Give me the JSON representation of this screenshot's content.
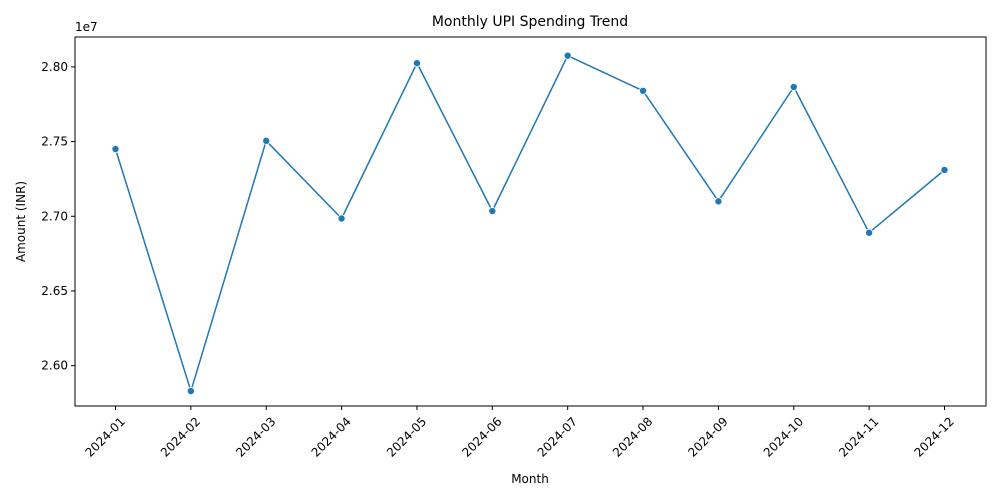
{
  "chart_data": {
    "type": "line",
    "title": "Monthly UPI Spending Trend",
    "xlabel": "Month",
    "ylabel": "Amount (INR)",
    "y_offset_label": "1e7",
    "categories": [
      "2024-01",
      "2024-02",
      "2024-03",
      "2024-04",
      "2024-05",
      "2024-06",
      "2024-07",
      "2024-08",
      "2024-09",
      "2024-10",
      "2024-11",
      "2024-12"
    ],
    "series": [
      {
        "values": [
          27450000,
          25830000,
          27505000,
          26985000,
          28025000,
          27035000,
          28075000,
          27840000,
          27100000,
          27865000,
          26890000,
          27310000
        ],
        "color": "#1f77b4",
        "marker": "circle"
      }
    ],
    "ylim": [
      25730000,
      28200000
    ],
    "y_ticks": [
      2.6,
      2.65,
      2.7,
      2.75,
      2.8
    ],
    "y_tick_labels": [
      "2.60",
      "2.65",
      "2.70",
      "2.75",
      "2.80"
    ],
    "grid": false,
    "x_tick_rotation": 45
  }
}
